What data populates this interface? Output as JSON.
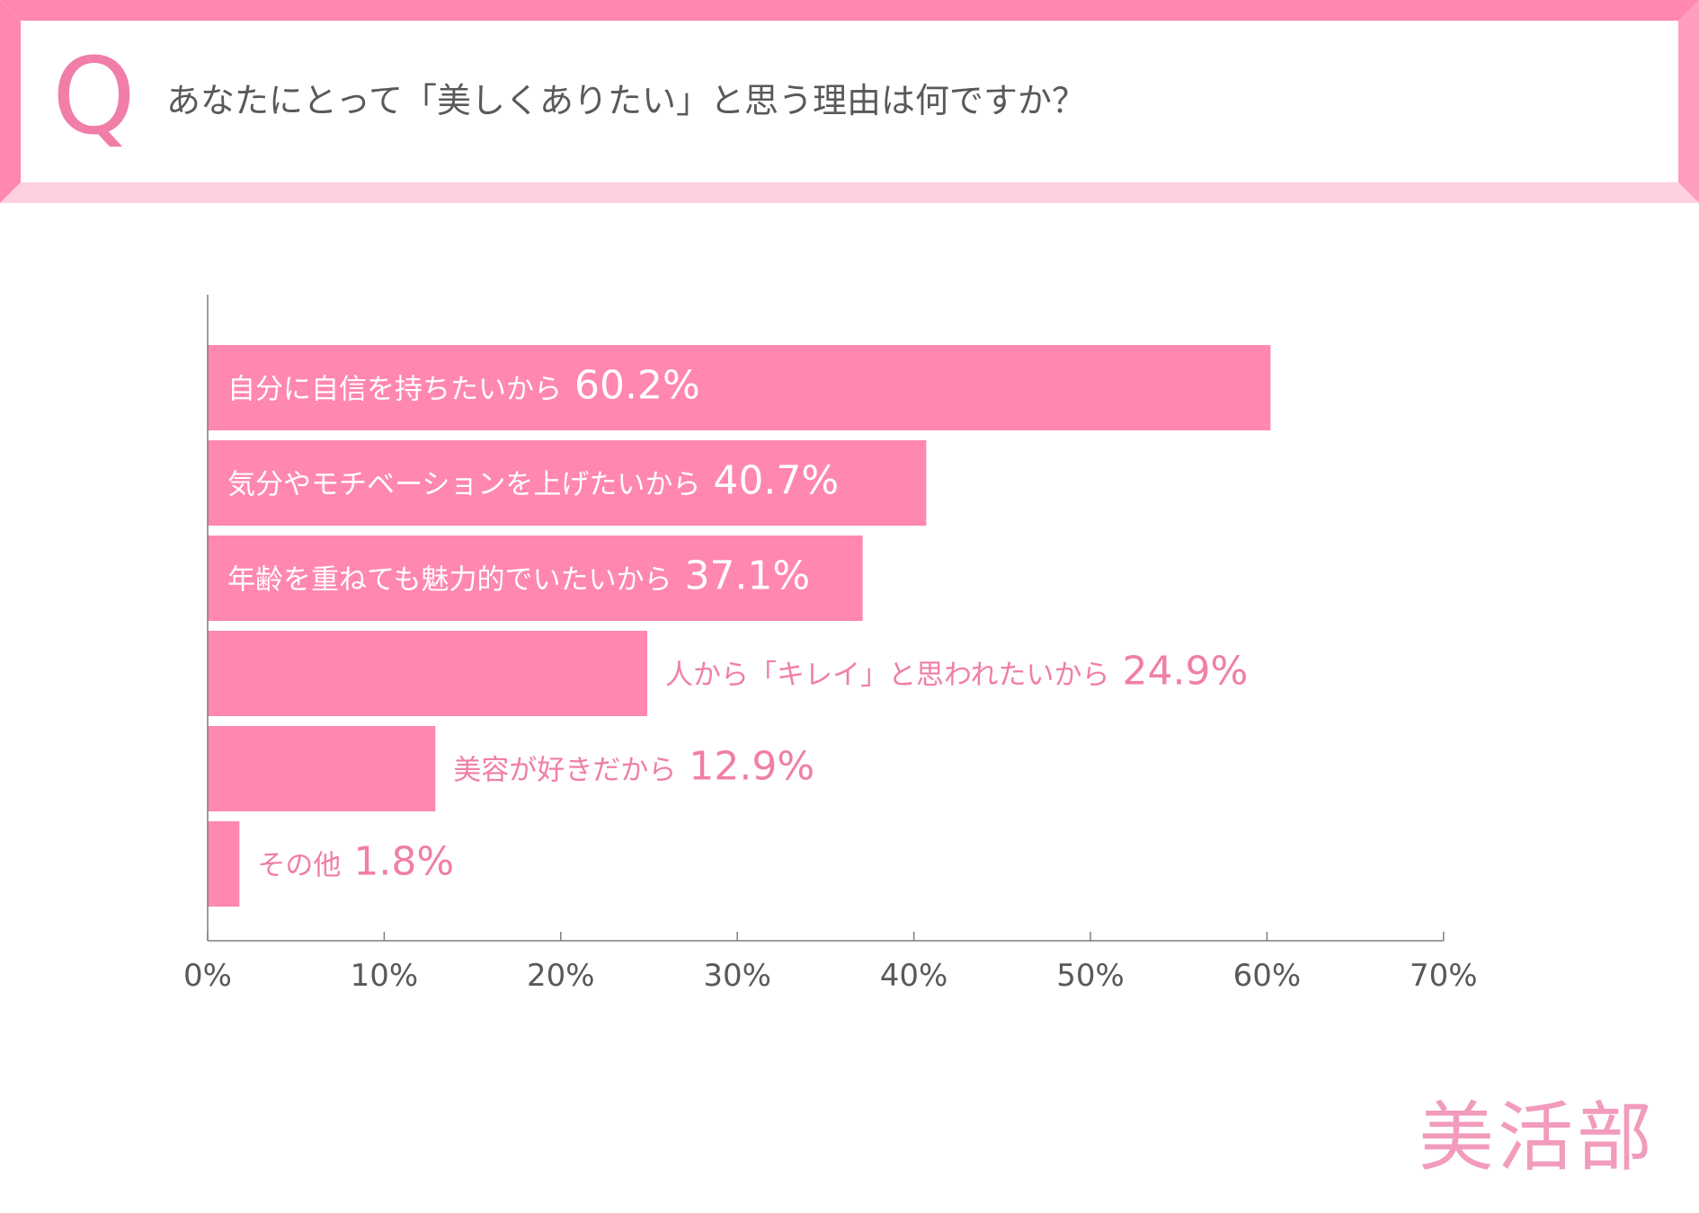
{
  "header": {
    "q_mark": "Q",
    "question": "あなたにとって「美しくありたい」と思う理由は何ですか？"
  },
  "colors": {
    "bar": "#ff87b0",
    "label_outside": "#f07ea8",
    "label_inside": "#ffffff",
    "axis": "#7f7f7f",
    "tick_label": "#595959",
    "frame_top": "#ff87b0",
    "frame_bottom": "#ffd0e1",
    "frame_side": "#ff9dc0",
    "brand": "#f29bbd"
  },
  "chart_data": {
    "type": "bar",
    "orientation": "horizontal",
    "title": "",
    "xlabel": "",
    "ylabel": "",
    "xlim": [
      0,
      70
    ],
    "x_ticks": [
      "0%",
      "10%",
      "20%",
      "30%",
      "40%",
      "50%",
      "60%",
      "70%"
    ],
    "grid": false,
    "legend": "none",
    "categories": [
      "自分に自信を持ちたいから",
      "気分やモチベーションを上げたいから",
      "年齢を重ねても魅力的でいたいから",
      "人から「キレイ」と思われたいから",
      "美容が好きだから",
      "その他"
    ],
    "values": [
      60.2,
      40.7,
      37.1,
      24.9,
      12.9,
      1.8
    ],
    "value_labels": [
      "60.2%",
      "40.7%",
      "37.1%",
      "24.9%",
      "12.9%",
      "1.8%"
    ],
    "label_inside": [
      true,
      true,
      true,
      false,
      false,
      false
    ]
  },
  "brand": {
    "name": "美活部"
  }
}
